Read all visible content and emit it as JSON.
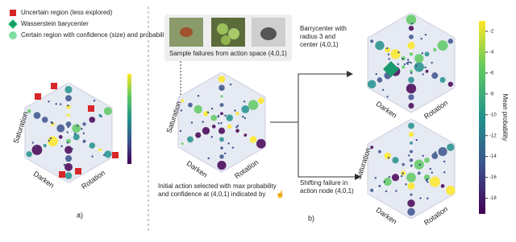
{
  "legend": {
    "items": [
      {
        "label": "Uncertain region (less explored)"
      },
      {
        "label": "Wasserstein barycenter"
      },
      {
        "label": "Certain region with confidence (size) and probability (color)"
      }
    ]
  },
  "panel_a": {
    "label": "a)",
    "axes": [
      "Saturation",
      "Darken",
      "Rotation"
    ]
  },
  "panel_b": {
    "label": "b)",
    "images_caption": "Sample failures from action space (4,0,1)",
    "main_axes": [
      "Saturation",
      "Darken",
      "Rotation"
    ],
    "initial_caption": [
      "Initial action selected with max probability",
      "and confidence at (4,0,1) indicated by"
    ],
    "barycenter_caption": [
      "Barrycenter with",
      "radius 3 and",
      "center (4,0,1)"
    ],
    "barycenter_axes": [
      "Darken",
      "Rotation"
    ],
    "shift_caption": [
      "Shifting failure in",
      "action node (4,0,1)"
    ],
    "shift_axes": [
      "Saturation",
      "Darken",
      "Rotation"
    ]
  },
  "colorbar": {
    "title": "Mean probability",
    "ticks": [
      -2,
      -4,
      -6,
      -8,
      -10,
      -12,
      -14,
      -16,
      -18
    ],
    "range": [
      -19.5,
      -1
    ]
  }
}
